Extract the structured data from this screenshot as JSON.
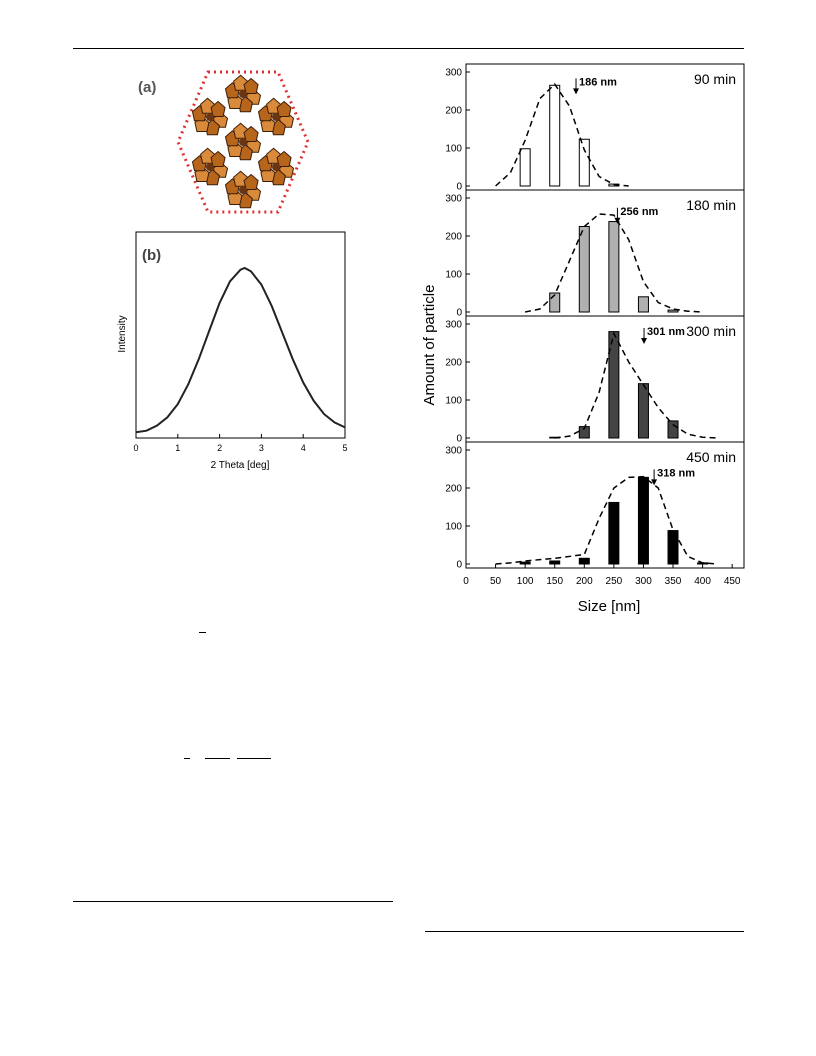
{
  "panel_a": {
    "label": "(a)"
  },
  "panel_b": {
    "label": "(b)"
  },
  "chart_data": [
    {
      "type": "line",
      "title": "",
      "panel": "(b)",
      "xlabel": "2 Theta [deg]",
      "ylabel": "Intensity",
      "xlim": [
        0,
        5
      ],
      "xticks": [
        "0",
        "1",
        "2",
        "3",
        "4",
        "5"
      ],
      "series": [
        {
          "x": [
            0,
            0.25,
            0.5,
            0.75,
            1.0,
            1.25,
            1.5,
            1.75,
            2.0,
            2.25,
            2.5,
            2.6,
            2.75,
            3.0,
            3.25,
            3.5,
            3.75,
            4.0,
            4.25,
            4.5,
            4.75,
            5.0
          ],
          "y": [
            0.01,
            0.02,
            0.05,
            0.1,
            0.18,
            0.3,
            0.45,
            0.62,
            0.79,
            0.92,
            0.99,
            1.0,
            0.98,
            0.9,
            0.77,
            0.61,
            0.45,
            0.31,
            0.2,
            0.12,
            0.07,
            0.04
          ]
        }
      ],
      "grid": false
    },
    {
      "type": "bar",
      "title": "",
      "xlabel": "Size [nm]",
      "ylabel": "Amount of particle",
      "xlim": [
        0,
        470
      ],
      "ylim": [
        0,
        300
      ],
      "xticks": [
        "0",
        "50",
        "100",
        "150",
        "200",
        "250",
        "300",
        "350",
        "400",
        "450"
      ],
      "yticks": [
        "0",
        "100",
        "200",
        "300"
      ],
      "panels": [
        {
          "time": "90 min",
          "annotation": "186 nm",
          "peak_x": 186,
          "fill": "#ffffff",
          "sizes": [
            100,
            150,
            200,
            250
          ],
          "values": [
            98,
            265,
            123,
            5
          ],
          "fit_x": [
            50,
            75,
            100,
            125,
            150,
            175,
            200,
            225,
            250,
            275
          ],
          "fit_y": [
            0,
            35,
            120,
            230,
            268,
            210,
            95,
            25,
            4,
            0
          ]
        },
        {
          "time": "180 min",
          "annotation": "256 nm",
          "peak_x": 256,
          "fill": "#b0b0b0",
          "sizes": [
            150,
            200,
            250,
            300,
            350
          ],
          "values": [
            50,
            225,
            238,
            40,
            5
          ],
          "fit_x": [
            100,
            125,
            150,
            175,
            200,
            225,
            250,
            275,
            300,
            325,
            350,
            375,
            400
          ],
          "fit_y": [
            0,
            8,
            45,
            135,
            225,
            258,
            255,
            190,
            80,
            25,
            8,
            2,
            0
          ]
        },
        {
          "time": "300 min",
          "annotation": "301 nm",
          "peak_x": 301,
          "fill": "#444444",
          "sizes": [
            150,
            200,
            250,
            300,
            350
          ],
          "values": [
            2,
            30,
            280,
            143,
            45
          ],
          "fit_x": [
            150,
            175,
            200,
            225,
            250,
            275,
            300,
            325,
            350,
            375,
            400,
            425
          ],
          "fit_y": [
            0,
            5,
            25,
            120,
            275,
            200,
            140,
            80,
            35,
            10,
            2,
            0
          ]
        },
        {
          "time": "450 min",
          "annotation": "318 nm",
          "peak_x": 318,
          "fill": "#000000",
          "sizes": [
            100,
            150,
            200,
            250,
            300,
            350,
            400
          ],
          "values": [
            5,
            8,
            15,
            162,
            228,
            88,
            3
          ],
          "fit_x": [
            50,
            75,
            100,
            150,
            200,
            225,
            250,
            275,
            300,
            325,
            350,
            375,
            400,
            425
          ],
          "fit_y": [
            0,
            3,
            8,
            15,
            25,
            120,
            200,
            228,
            230,
            200,
            90,
            20,
            3,
            0
          ]
        }
      ]
    }
  ]
}
